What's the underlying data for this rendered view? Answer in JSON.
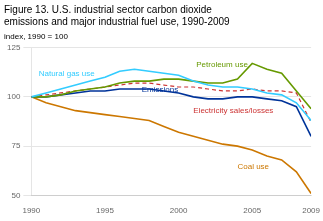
{
  "chart_data": {
    "type": "line",
    "title": [
      "Figure 13. U.S. industrial sector carbon dioxide",
      "emissions and major industrial fuel use, 1990-2009"
    ],
    "subtitle": "index, 1990 = 100",
    "x": [
      1990,
      1991,
      1992,
      1993,
      1994,
      1995,
      1996,
      1997,
      1998,
      1999,
      2000,
      2001,
      2002,
      2003,
      2004,
      2005,
      2006,
      2007,
      2008,
      2009
    ],
    "xlim": [
      1990,
      2009
    ],
    "xticks": [
      1990,
      1995,
      2000,
      2005,
      2009
    ],
    "ylim": [
      50,
      125
    ],
    "yticks": [
      50,
      75,
      100,
      125
    ],
    "grid": "y",
    "series": [
      {
        "name": "Natural gas use",
        "color": "#33ccff",
        "line_style": "solid",
        "values": [
          100,
          102,
          104,
          106,
          108,
          110,
          113,
          114,
          113,
          112,
          111,
          108,
          106,
          105,
          105,
          104,
          102,
          101,
          97,
          88
        ]
      },
      {
        "name": "Petroleum use",
        "color": "#669900",
        "line_style": "solid",
        "values": [
          100,
          100,
          101,
          103,
          104,
          105,
          107,
          108,
          108,
          109,
          109,
          108,
          107,
          107,
          109,
          117,
          114,
          112,
          103,
          94
        ]
      },
      {
        "name": "Emissions",
        "color": "#003399",
        "line_style": "solid",
        "values": [
          100,
          100,
          101,
          102,
          103,
          103,
          104,
          104,
          104,
          103,
          102,
          100,
          99,
          99,
          100,
          100,
          99,
          98,
          95,
          80
        ]
      },
      {
        "name": "Electricity sales/losses",
        "color": "#cc3333",
        "line_style": "dashed",
        "values": [
          100,
          101,
          102,
          103,
          104,
          105,
          106,
          107,
          107,
          106,
          105,
          105,
          104,
          103,
          103,
          104,
          103,
          103,
          102,
          87
        ]
      },
      {
        "name": "Coal use",
        "color": "#cc7700",
        "line_style": "solid",
        "values": [
          100,
          97,
          95,
          93,
          92,
          91,
          90,
          89,
          88,
          85,
          82,
          80,
          78,
          76,
          75,
          73,
          70,
          68,
          62,
          51
        ]
      }
    ],
    "annotations": [
      {
        "text": "Natural gas use",
        "x": 1990.5,
        "y": 111.5,
        "color": "#33ccff"
      },
      {
        "text": "Petroleum use",
        "x": 2001.2,
        "y": 116.5,
        "color": "#669900"
      },
      {
        "text": "Emissions",
        "x": 1997.5,
        "y": 103.8,
        "color": "#003399"
      },
      {
        "text": "Electricity sales/losses",
        "x": 2001.0,
        "y": 93.0,
        "color": "#cc3333"
      },
      {
        "text": "Coal use",
        "x": 2004.0,
        "y": 64.5,
        "color": "#cc7700"
      }
    ],
    "legend": false
  }
}
